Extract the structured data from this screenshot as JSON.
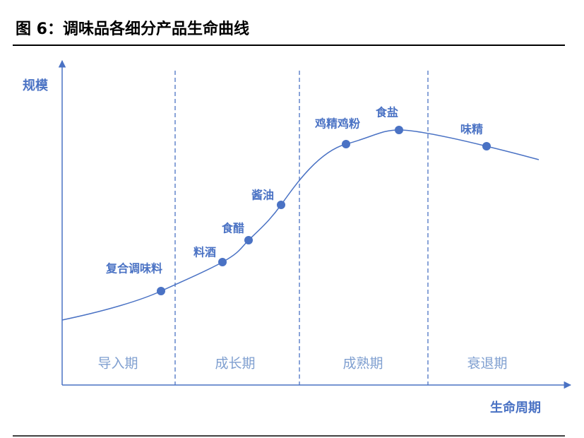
{
  "title": "图 6：调味品各细分产品生命曲线",
  "axes": {
    "y_label": "规模",
    "x_label": "生命周期"
  },
  "stages": [
    "导入期",
    "成长期",
    "成熟期",
    "衰退期"
  ],
  "products": [
    "复合调味料",
    "料酒",
    "食醋",
    "酱油",
    "鸡精鸡粉",
    "食盐",
    "味精"
  ]
}
